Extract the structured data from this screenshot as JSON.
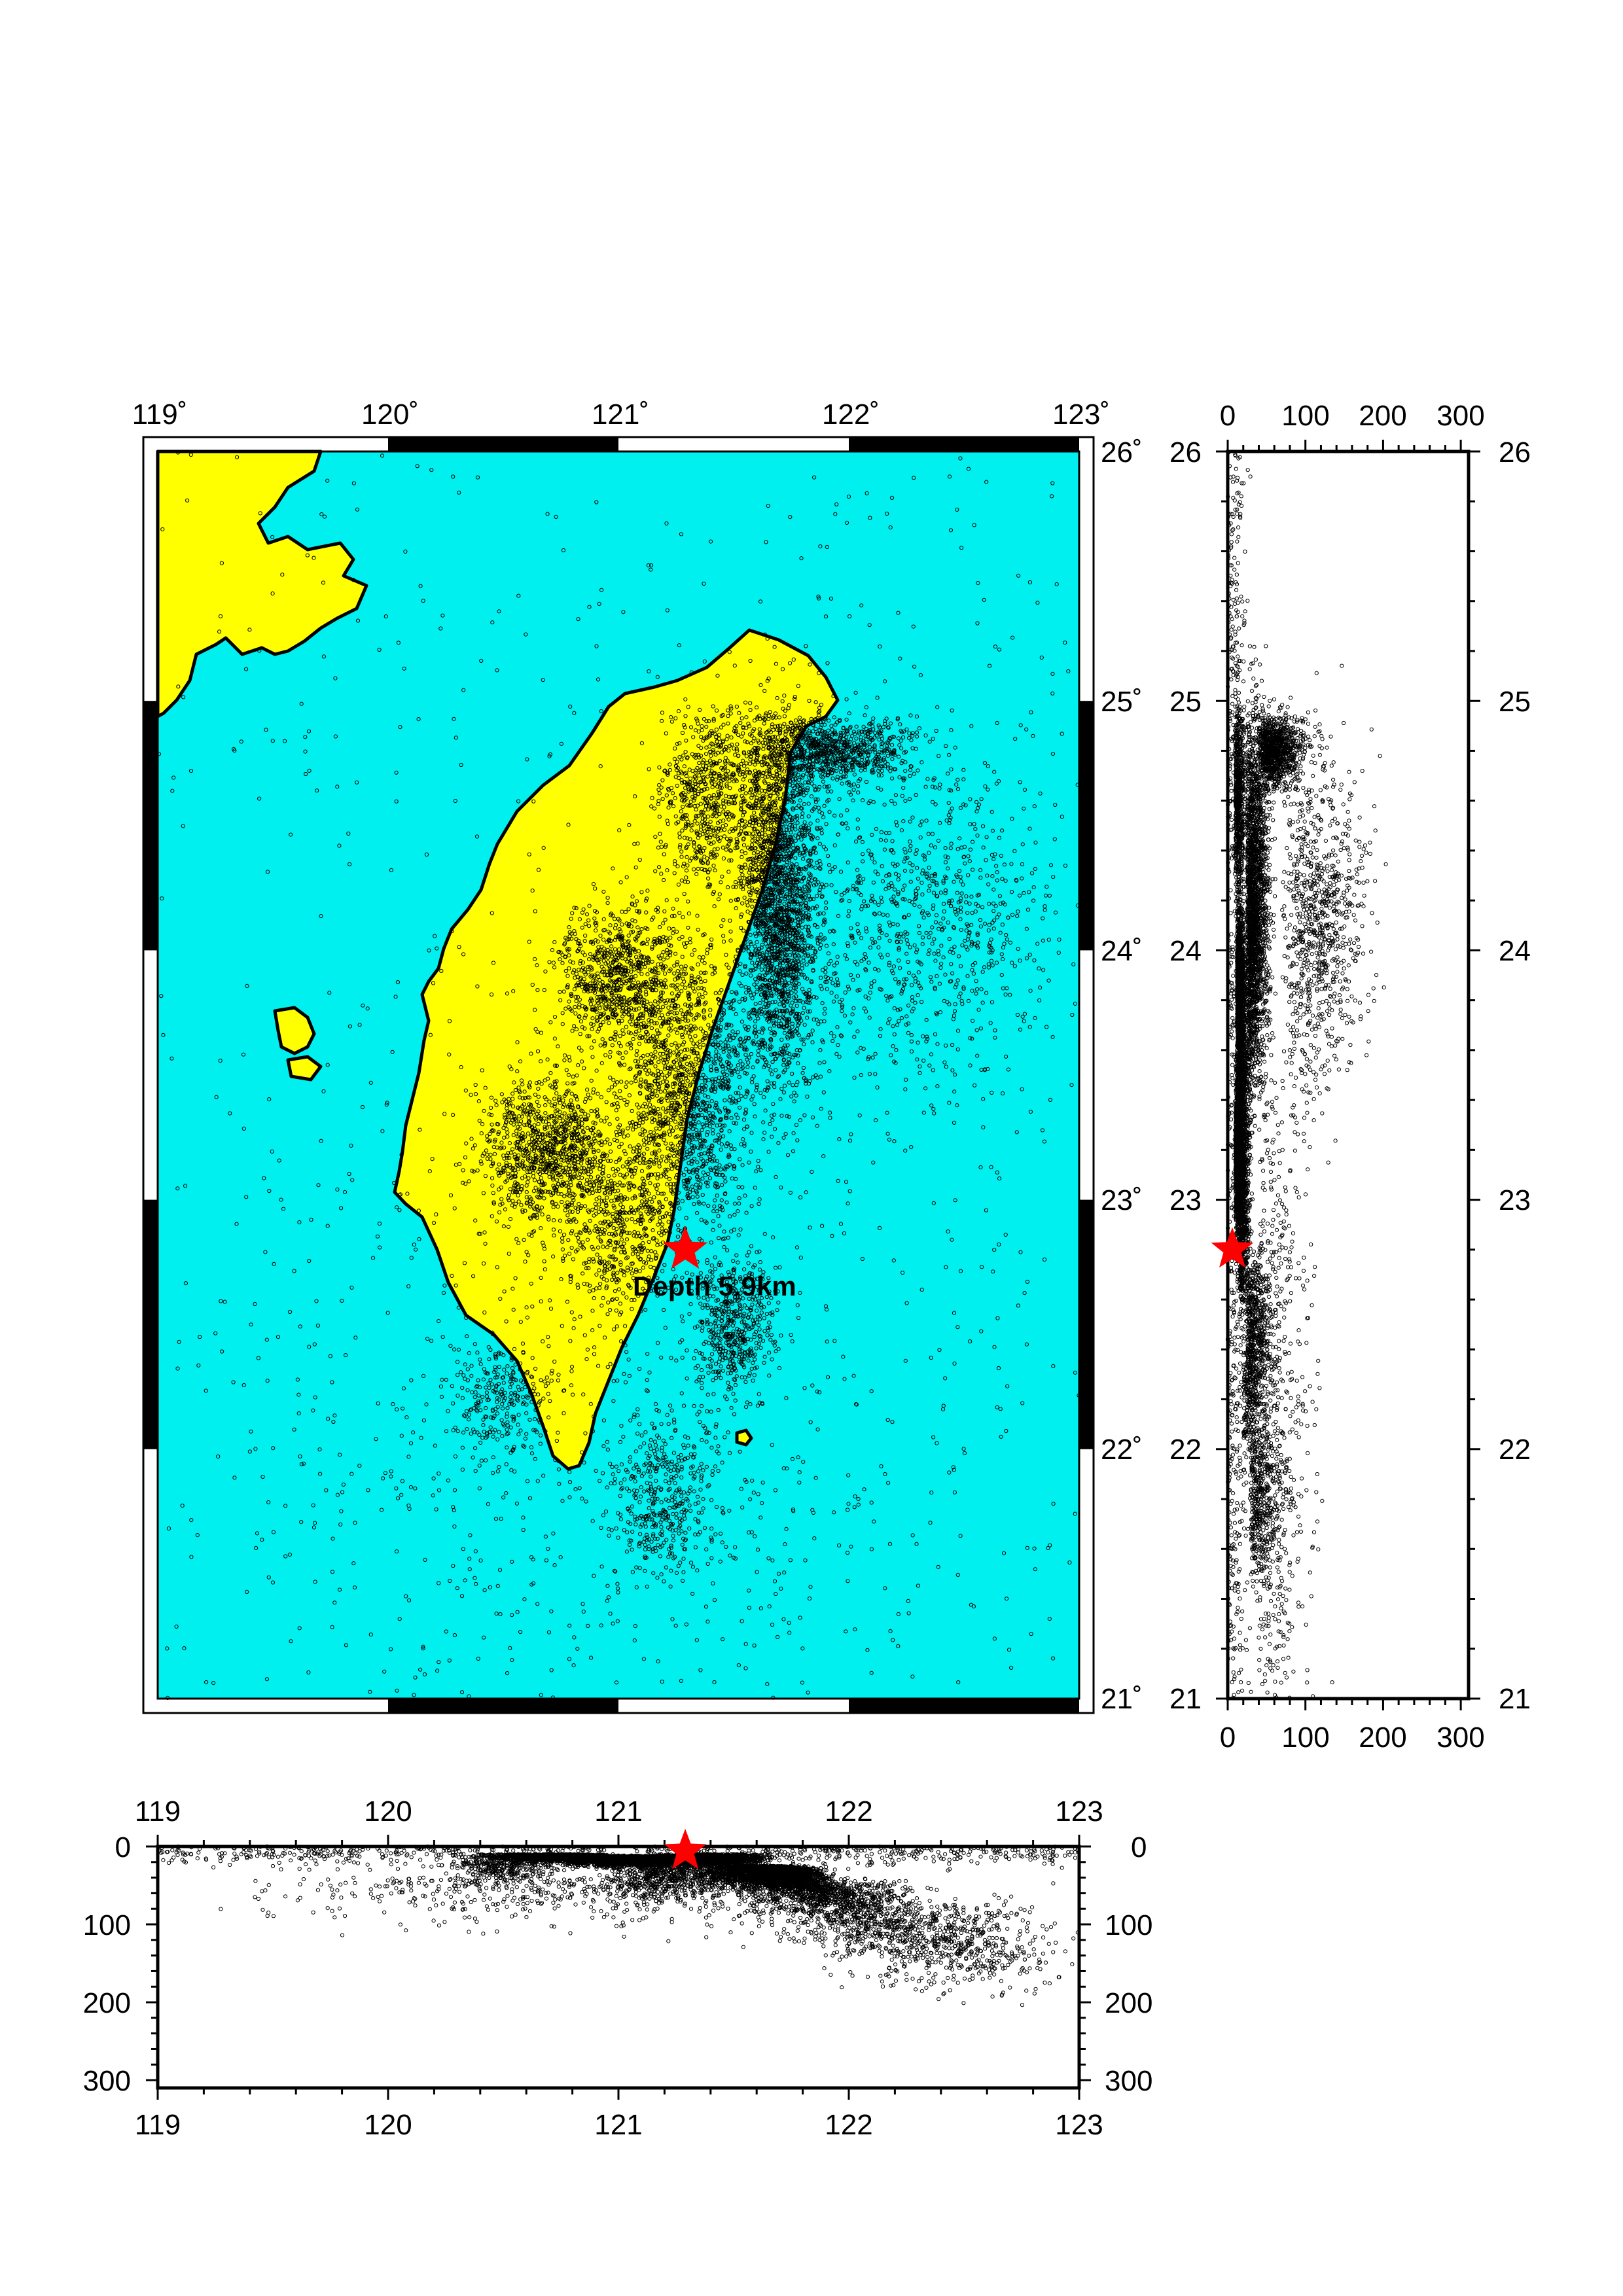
{
  "map": {
    "lon_ticks": [
      "119˚",
      "120˚",
      "121˚",
      "122˚",
      "123˚"
    ],
    "lat_ticks": [
      "21˚",
      "22˚",
      "23˚",
      "24˚",
      "25˚",
      "26˚"
    ],
    "lon_range": [
      119,
      123
    ],
    "lat_range": [
      21,
      26
    ],
    "ocean_color": "#00f0f0",
    "land_color": "#ffff00",
    "event_color": "#ff0000",
    "event": {
      "lon": 121.29,
      "lat": 22.8,
      "depth_km": 5.9,
      "label": "Depth 5.9km"
    }
  },
  "lat_depth_section": {
    "depth_ticks": [
      "0",
      "100",
      "200",
      "300"
    ],
    "lat_ticks": [
      "21",
      "22",
      "23",
      "24",
      "25",
      "26"
    ],
    "depth_range": [
      0,
      310
    ]
  },
  "lon_depth_section": {
    "lon_ticks": [
      "119",
      "120",
      "121",
      "122",
      "123"
    ],
    "depth_ticks": [
      "0",
      "100",
      "200",
      "300"
    ],
    "depth_range": [
      0,
      310
    ]
  }
}
